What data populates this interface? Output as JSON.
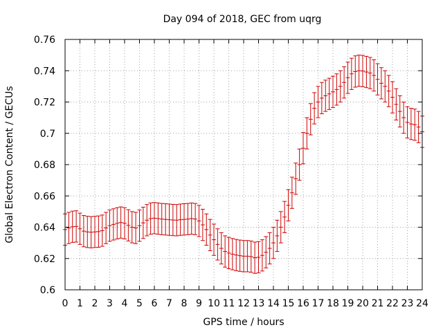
{
  "chart_data": {
    "type": "scatter",
    "title": "Day 094 of 2018, GEC from uqrg",
    "xlabel": "GPS time / hours",
    "ylabel": "Global Electron Content / GECUs",
    "xlim": [
      0,
      24
    ],
    "ylim": [
      0.6,
      0.76
    ],
    "x_ticks": [
      0,
      1,
      2,
      3,
      4,
      5,
      6,
      7,
      8,
      9,
      10,
      11,
      12,
      13,
      14,
      15,
      16,
      17,
      18,
      19,
      20,
      21,
      22,
      23,
      24
    ],
    "x_tick_labels": [
      "0",
      "1",
      "2",
      "3",
      "4",
      "5",
      "6",
      "7",
      "8",
      "9",
      "10",
      "11",
      "12",
      "13",
      "14",
      "15",
      "16",
      "17",
      "18",
      "19",
      "20",
      "21",
      "22",
      "23",
      "24"
    ],
    "y_ticks": [
      0.6,
      0.62,
      0.64,
      0.66,
      0.68,
      0.7,
      0.72,
      0.74,
      0.76
    ],
    "y_tick_labels": [
      "0.6",
      "0.62",
      "0.64",
      "0.66",
      "0.68",
      "0.7",
      "0.72",
      "0.74",
      "0.76"
    ],
    "grid": true,
    "series_color": "#cc0000",
    "error_bar": 0.01,
    "x_step_hours": 0.25,
    "series": [
      {
        "name": "GEC",
        "values": [
          0.6385,
          0.6395,
          0.6403,
          0.6405,
          0.639,
          0.6375,
          0.637,
          0.6368,
          0.637,
          0.6372,
          0.6378,
          0.6395,
          0.641,
          0.6418,
          0.6425,
          0.643,
          0.6425,
          0.6412,
          0.64,
          0.6395,
          0.641,
          0.6428,
          0.6445,
          0.6455,
          0.6458,
          0.6455,
          0.6452,
          0.645,
          0.6448,
          0.6446,
          0.6445,
          0.6448,
          0.645,
          0.6452,
          0.6455,
          0.6452,
          0.644,
          0.6415,
          0.6385,
          0.635,
          0.632,
          0.629,
          0.6265,
          0.6245,
          0.6235,
          0.6228,
          0.6222,
          0.6218,
          0.6215,
          0.6215,
          0.6212,
          0.6205,
          0.6208,
          0.622,
          0.624,
          0.6265,
          0.63,
          0.6345,
          0.64,
          0.6465,
          0.654,
          0.662,
          0.671,
          0.68,
          0.6905,
          0.7,
          0.709,
          0.716,
          0.72,
          0.7225,
          0.724,
          0.7252,
          0.7265,
          0.728,
          0.73,
          0.7325,
          0.7355,
          0.738,
          0.7395,
          0.74,
          0.7398,
          0.7392,
          0.7385,
          0.737,
          0.7345,
          0.732,
          0.73,
          0.727,
          0.723,
          0.7185,
          0.714,
          0.71,
          0.707,
          0.706,
          0.7055,
          0.704,
          0.701
        ]
      }
    ]
  }
}
